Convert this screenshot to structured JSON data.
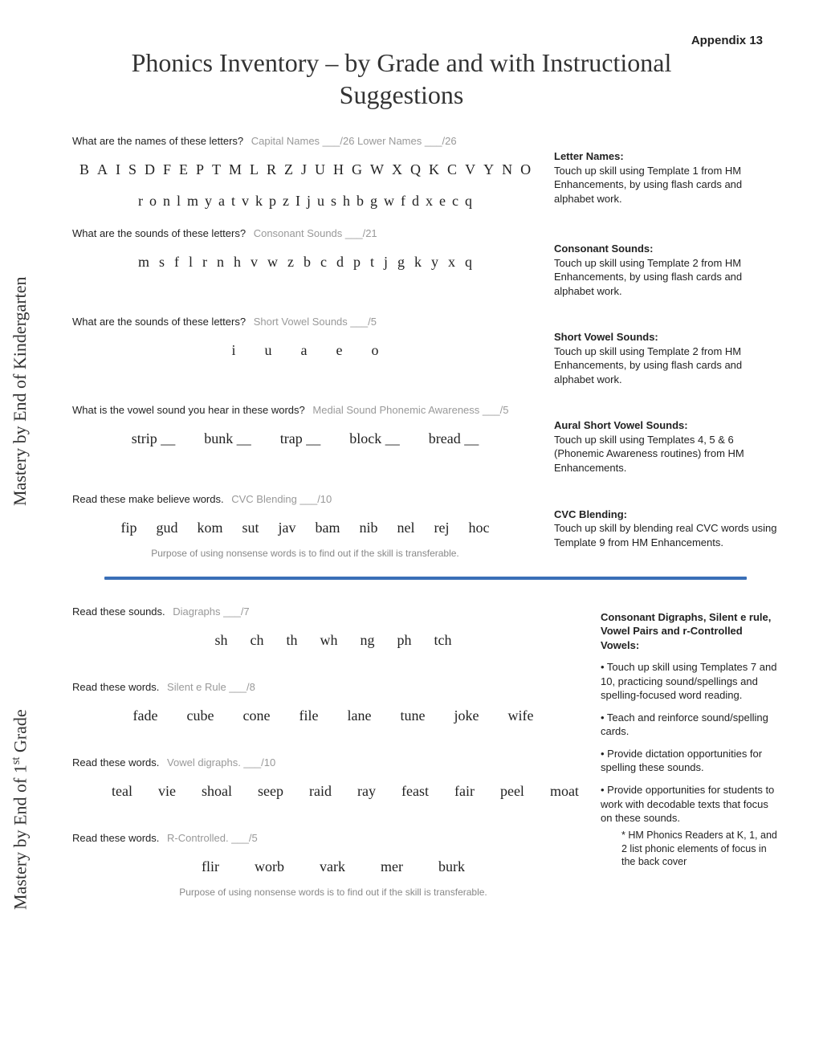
{
  "appendix": "Appendix 13",
  "title": "Phonics Inventory – by Grade and with Instructional Suggestions",
  "side_labels": {
    "kinder": "Mastery by End of Kindergarten",
    "first_pre": "Mastery by End of 1",
    "first_suf": "st",
    "first_post": " Grade"
  },
  "kinder": {
    "s1": {
      "prompt": "What are the names of these letters?",
      "score": "Capital Names ___/26  Lower Names ___/26",
      "row1": [
        "B",
        "A",
        "I",
        "S",
        "D",
        "F",
        "E",
        "P",
        "T",
        "M",
        "L",
        "R",
        "Z",
        "J",
        "U",
        "H",
        "G",
        "W",
        "X",
        "Q",
        "K",
        "C",
        "V",
        "Y",
        "N",
        "O"
      ],
      "row2": [
        "r",
        "o",
        "n",
        "l",
        "m",
        "y",
        "a",
        "t",
        "v",
        "k",
        "p",
        "z",
        "I",
        "j",
        "u",
        "s",
        "h",
        "b",
        "g",
        "w",
        "f",
        "d",
        "x",
        "e",
        "c",
        "q"
      ],
      "tip_title": "Letter Names:",
      "tip_body": "Touch up skill using Template 1 from HM Enhancements, by using flash cards and alphabet work."
    },
    "s2": {
      "prompt": "What are the sounds of these letters?",
      "score": "Consonant Sounds ___/21",
      "row": [
        "m",
        "s",
        "f",
        "l",
        "r",
        "n",
        "h",
        "v",
        "w",
        "z",
        "b",
        "c",
        "d",
        "p",
        "t",
        "j",
        "g",
        "k",
        "y",
        "x",
        "q"
      ],
      "tip_title": "Consonant Sounds:",
      "tip_body": "Touch up skill using Template 2 from HM Enhancements, by using flash cards and alphabet work."
    },
    "s3": {
      "prompt": "What are the sounds of these letters?",
      "score": "Short Vowel Sounds ___/5",
      "row": [
        "i",
        "u",
        "a",
        "e",
        "o"
      ],
      "tip_title": "Short Vowel Sounds:",
      "tip_body": "Touch up skill using Template 2 from HM Enhancements, by using flash cards and alphabet work."
    },
    "s4": {
      "prompt": "What is the vowel sound you hear in these words?",
      "score": "Medial Sound Phonemic Awareness ___/5",
      "row": [
        "strip __",
        "bunk __",
        "trap __",
        "block __",
        "bread __"
      ],
      "tip_title": "Aural Short Vowel Sounds:",
      "tip_body": "Touch up skill using Templates 4, 5 & 6 (Phonemic Awareness routines) from HM Enhancements."
    },
    "s5": {
      "prompt": "Read these make believe words.",
      "score": "CVC Blending  ___/10",
      "row": [
        "fip",
        "gud",
        "kom",
        "sut",
        "jav",
        "bam",
        "nib",
        "nel",
        "rej",
        "hoc"
      ],
      "note": "Purpose of using nonsense words is to find out if the skill is transferable.",
      "tip_title": "CVC Blending:",
      "tip_body": "Touch up skill by blending real CVC words using Template 9 from HM Enhancements."
    }
  },
  "grade1": {
    "s1": {
      "prompt": "Read these sounds.",
      "score": "Diagraphs  ___/7",
      "row": [
        "sh",
        "ch",
        "th",
        "wh",
        "ng",
        "ph",
        "tch"
      ]
    },
    "s2": {
      "prompt": "Read these words.",
      "score": "Silent e Rule ___/8",
      "row": [
        "fade",
        "cube",
        "cone",
        "file",
        "lane",
        "tune",
        "joke",
        "wife"
      ]
    },
    "s3": {
      "prompt": "Read these words.",
      "score": "Vowel digraphs.  ___/10",
      "row": [
        "teal",
        "vie",
        "shoal",
        "seep",
        "raid",
        "ray",
        "feast",
        "fair",
        "peel",
        "moat"
      ]
    },
    "s4": {
      "prompt": "Read these words.",
      "score": "R-Controlled.  ___/5",
      "row": [
        "flir",
        "worb",
        "vark",
        "mer",
        "burk"
      ],
      "note": "Purpose of using nonsense words is to find out if the skill is transferable."
    },
    "tips_title": "Consonant Digraphs, Silent e rule, Vowel Pairs and r-Controlled Vowels:",
    "b1": "• Touch up skill using Templates 7 and 10, practicing sound/spellings and spelling-focused word reading.",
    "b2": "• Teach and reinforce sound/spelling cards.",
    "b3": "• Provide dictation opportunities for spelling these sounds.",
    "b4": "• Provide opportunities for students to work with decodable texts that focus on these sounds.",
    "sub": "* HM Phonics Readers at K, 1, and 2 list phonic elements of focus in the back cover"
  }
}
